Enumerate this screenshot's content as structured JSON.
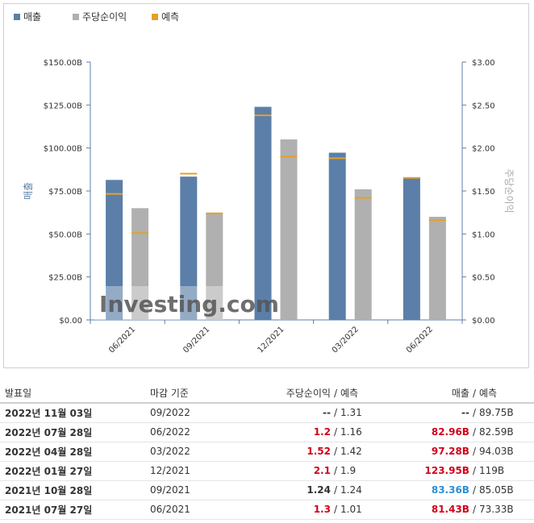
{
  "legend": [
    {
      "label": "매출",
      "color": "#5b7fa8",
      "kind": "square"
    },
    {
      "label": "주당순이익",
      "color": "#b0b0b0",
      "kind": "square"
    },
    {
      "label": "예측",
      "color": "#e5a02a",
      "kind": "square"
    }
  ],
  "chart_data": {
    "type": "bar",
    "categories": [
      "06/2021",
      "09/2021",
      "12/2021",
      "03/2022",
      "06/2022"
    ],
    "series": [
      {
        "name": "매출",
        "axis": "left",
        "values": [
          81.43,
          83.36,
          123.95,
          97.28,
          82.96
        ],
        "forecast": [
          73.33,
          85.05,
          119,
          94.03,
          82.59
        ],
        "color": "#5b7fa8"
      },
      {
        "name": "주당순이익",
        "axis": "right",
        "values": [
          1.3,
          1.24,
          2.1,
          1.52,
          1.2
        ],
        "forecast": [
          1.01,
          1.24,
          1.9,
          1.42,
          1.16
        ],
        "color": "#b0b0b0"
      }
    ],
    "forecast_color": "#e5a02a",
    "left_axis": {
      "label": "매출",
      "ticks": [
        "$0.00",
        "$25.00B",
        "$50.00B",
        "$75.00B",
        "$100.00B",
        "$125.00B",
        "$150.00B"
      ],
      "ylim": [
        0,
        150
      ]
    },
    "right_axis": {
      "label": "주당순이익",
      "ticks": [
        "$0.00",
        "$0.50",
        "$1.00",
        "$1.50",
        "$2.00",
        "$2.50",
        "$3.00"
      ],
      "ylim": [
        0,
        3
      ]
    },
    "watermark": "Investing.com"
  },
  "table": {
    "headers": {
      "date": "발표일",
      "period_end": "마감 기준",
      "eps": "주당순이익",
      "eps_forecast": "예측",
      "revenue": "매출",
      "revenue_forecast": "예측",
      "sep": "/"
    },
    "rows": [
      {
        "date": "2022년 11월 03일",
        "period_end": "09/2022",
        "eps": "--",
        "eps_color": "",
        "eps_forecast": "1.31",
        "revenue": "--",
        "revenue_color": "",
        "revenue_forecast": "89.75B"
      },
      {
        "date": "2022년 07월 28일",
        "period_end": "06/2022",
        "eps": "1.2",
        "eps_color": "red",
        "eps_forecast": "1.16",
        "revenue": "82.96B",
        "revenue_color": "red",
        "revenue_forecast": "82.59B"
      },
      {
        "date": "2022년 04월 28일",
        "period_end": "03/2022",
        "eps": "1.52",
        "eps_color": "red",
        "eps_forecast": "1.42",
        "revenue": "97.28B",
        "revenue_color": "red",
        "revenue_forecast": "94.03B"
      },
      {
        "date": "2022년 01월 27일",
        "period_end": "12/2021",
        "eps": "2.1",
        "eps_color": "red",
        "eps_forecast": "1.9",
        "revenue": "123.95B",
        "revenue_color": "red",
        "revenue_forecast": "119B"
      },
      {
        "date": "2021년 10월 28일",
        "period_end": "09/2021",
        "eps": "1.24",
        "eps_color": "",
        "eps_forecast": "1.24",
        "revenue": "83.36B",
        "revenue_color": "blue",
        "revenue_forecast": "85.05B"
      },
      {
        "date": "2021년 07월 27일",
        "period_end": "06/2021",
        "eps": "1.3",
        "eps_color": "red",
        "eps_forecast": "1.01",
        "revenue": "81.43B",
        "revenue_color": "red",
        "revenue_forecast": "73.33B"
      }
    ]
  }
}
